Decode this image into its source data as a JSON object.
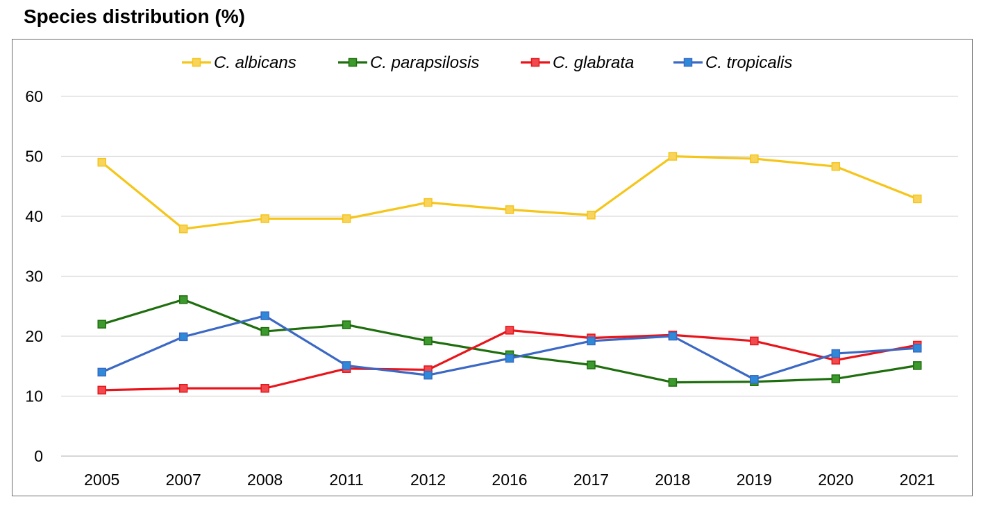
{
  "chart_data": {
    "type": "line",
    "title": "Species distribution (%)",
    "xlabel": "",
    "ylabel": "",
    "categories": [
      "2005",
      "2007",
      "2008",
      "2011",
      "2012",
      "2016",
      "2017",
      "2018",
      "2019",
      "2020",
      "2021"
    ],
    "ylim": [
      0,
      60
    ],
    "yticks": [
      0,
      10,
      20,
      30,
      40,
      50,
      60
    ],
    "grid": "horizontal",
    "legend_position": "top",
    "series": [
      {
        "name": "C. albicans",
        "color": "#f5c518",
        "marker_fill": "#f8d45c",
        "values": [
          49.0,
          37.9,
          39.6,
          39.6,
          42.3,
          41.1,
          40.2,
          50.0,
          49.6,
          48.3,
          42.9
        ]
      },
      {
        "name": "C. parapsilosis",
        "color": "#1e6e0e",
        "marker_fill": "#3c9a2c",
        "values": [
          22.0,
          26.1,
          20.8,
          21.9,
          19.2,
          16.9,
          15.2,
          12.3,
          12.4,
          12.9,
          15.1
        ]
      },
      {
        "name": "C. glabrata",
        "color": "#e8141a",
        "marker_fill": "#f0494e",
        "values": [
          11.0,
          11.3,
          11.3,
          14.6,
          14.4,
          21.0,
          19.7,
          20.2,
          19.2,
          16.0,
          18.5
        ]
      },
      {
        "name": "C. tropicalis",
        "color": "#3a68c4",
        "marker_fill": "#2e8ad8",
        "values": [
          14.0,
          19.9,
          23.4,
          15.1,
          13.5,
          16.3,
          19.2,
          20.0,
          12.8,
          17.1,
          18.0
        ]
      }
    ]
  }
}
